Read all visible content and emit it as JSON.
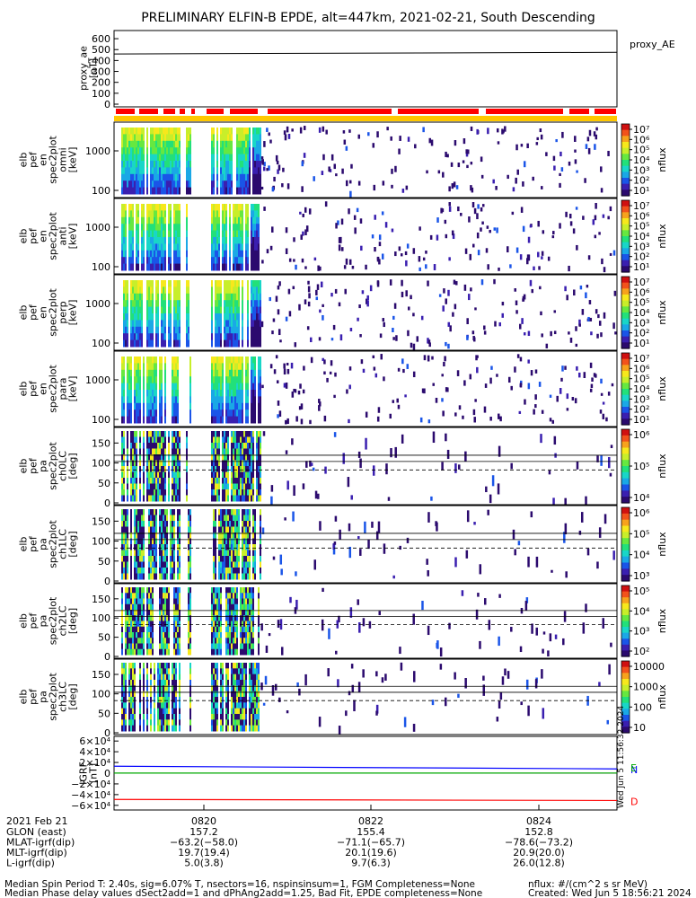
{
  "title": "PRELIMINARY ELFIN-B EPDE, alt=447km, 2021-02-21, South Descending",
  "colors": {
    "spectrogram": [
      "#2b0a6e",
      "#3a1fb0",
      "#1a55e8",
      "#1aa8e6",
      "#19d6c8",
      "#22e07a",
      "#66e840",
      "#c8ee2a",
      "#f7e81c",
      "#f7a21c",
      "#f2521b",
      "#d01010"
    ],
    "footprint_bar_red": "#ff0000",
    "footprint_bar_yellow": "#ffc800",
    "bx": "#0000ff",
    "by": "#00aa00",
    "bz": "#ff0000"
  },
  "chart_data": [
    {
      "type": "line",
      "panel": "proxy_ae",
      "legend": "proxy_AE",
      "ylabel_lines": [
        "proxy_ae",
        "[nT]"
      ],
      "yticks": [
        "600",
        "500",
        "400",
        "300",
        "200",
        "100",
        "0"
      ],
      "ylim": [
        0,
        650
      ],
      "x": [
        0,
        1
      ],
      "values": [
        460,
        475
      ]
    },
    {
      "type": "heatmap",
      "panel": "pef_en_spec2plot_omni",
      "ylabel_lines": [
        "elb",
        "pef",
        "en",
        "spec2plot",
        "omni",
        "[keV]"
      ],
      "yticks": [
        "1000",
        "100"
      ],
      "y_scale": "log",
      "colorbar": {
        "label": "nflux",
        "ticks": [
          "10⁷",
          "10⁶",
          "10⁵",
          "10⁴",
          "10³",
          "10²",
          "10¹"
        ]
      }
    },
    {
      "type": "heatmap",
      "panel": "pef_en_spec2plot_anti",
      "ylabel_lines": [
        "elb",
        "pef",
        "en",
        "spec2plot",
        "anti",
        "[keV]"
      ],
      "yticks": [
        "1000",
        "100"
      ],
      "y_scale": "log",
      "colorbar": {
        "label": "nflux",
        "ticks": [
          "10⁷",
          "10⁶",
          "10⁵",
          "10⁴",
          "10³",
          "10²",
          "10¹"
        ]
      }
    },
    {
      "type": "heatmap",
      "panel": "pef_en_spec2plot_perp",
      "ylabel_lines": [
        "elb",
        "pef",
        "en",
        "spec2plot",
        "perp",
        "[keV]"
      ],
      "yticks": [
        "1000",
        "100"
      ],
      "y_scale": "log",
      "colorbar": {
        "label": "nflux",
        "ticks": [
          "10⁷",
          "10⁶",
          "10⁵",
          "10⁴",
          "10³",
          "10²",
          "10¹"
        ]
      }
    },
    {
      "type": "heatmap",
      "panel": "pef_en_spec2plot_para",
      "ylabel_lines": [
        "elb",
        "pef",
        "en",
        "spec2plot",
        "para",
        "[keV]"
      ],
      "yticks": [
        "1000",
        "100"
      ],
      "y_scale": "log",
      "colorbar": {
        "label": "nflux",
        "ticks": [
          "10⁷",
          "10⁶",
          "10⁵",
          "10⁴",
          "10³",
          "10²",
          "10¹"
        ]
      }
    },
    {
      "type": "heatmap",
      "panel": "pef_pa_spec2plot_ch0LC",
      "ylabel_lines": [
        "elb",
        "pef",
        "pa",
        "spec2plot",
        "ch0LC",
        "[deg]"
      ],
      "yticks": [
        "150",
        "100",
        "50",
        "0"
      ],
      "ylim": [
        0,
        180
      ],
      "colorbar": {
        "label": "nflux",
        "ticks": [
          "10⁶",
          "10⁵",
          "10⁴"
        ]
      }
    },
    {
      "type": "heatmap",
      "panel": "pef_pa_spec2plot_ch1LC",
      "ylabel_lines": [
        "elb",
        "pef",
        "pa",
        "spec2plot",
        "ch1LC",
        "[deg]"
      ],
      "yticks": [
        "150",
        "100",
        "50",
        "0"
      ],
      "ylim": [
        0,
        180
      ],
      "colorbar": {
        "label": "nflux",
        "ticks": [
          "10⁶",
          "10⁵",
          "10⁴",
          "10³"
        ]
      }
    },
    {
      "type": "heatmap",
      "panel": "pef_pa_spec2plot_ch2LC",
      "ylabel_lines": [
        "elb",
        "pef",
        "pa",
        "spec2plot",
        "ch2LC",
        "[deg]"
      ],
      "yticks": [
        "150",
        "100",
        "50",
        "0"
      ],
      "ylim": [
        0,
        180
      ],
      "colorbar": {
        "label": "nflux",
        "ticks": [
          "10⁵",
          "10⁴",
          "10³",
          "10²"
        ]
      }
    },
    {
      "type": "heatmap",
      "panel": "pef_pa_spec2plot_ch3LC",
      "ylabel_lines": [
        "elb",
        "pef",
        "pa",
        "spec2plot",
        "ch3LC",
        "[deg]"
      ],
      "yticks": [
        "150",
        "100",
        "50",
        "0"
      ],
      "ylim": [
        0,
        180
      ],
      "colorbar": {
        "label": "nflux",
        "ticks": [
          "10000",
          "1000",
          "100",
          "10"
        ]
      }
    },
    {
      "type": "line",
      "panel": "IGRF",
      "ylabel_lines": [
        "IGRF",
        "[nT]"
      ],
      "yticks": [
        "6×10⁴",
        "4×10⁴",
        "2×10⁴",
        "0",
        "−2×10⁴",
        "−4×10⁴",
        "−6×10⁴"
      ],
      "ylim": [
        -62000,
        62000
      ],
      "series": [
        {
          "name": "N",
          "values": [
            13000,
            8000
          ]
        },
        {
          "name": "E",
          "values": [
            200,
            300
          ]
        },
        {
          "name": "D",
          "values": [
            -49000,
            -51000
          ]
        }
      ]
    }
  ],
  "created_vertical": "Wed Jun 5 11:56:32 2024",
  "xaxis": {
    "date": "2021 Feb 21",
    "rows": [
      {
        "label": "GLON (east)",
        "values": [
          "",
          "157.2",
          "155.4",
          "152.8"
        ]
      },
      {
        "label": "MLAT-igrf(dip)",
        "values": [
          "",
          "−63.2(−58.0)",
          "−71.1(−65.7)",
          "−78.6(−73.2)"
        ]
      },
      {
        "label": "MLT-igrf(dip)",
        "values": [
          "",
          "19.7(19.4)",
          "20.1(19.6)",
          "20.9(20.0)"
        ]
      },
      {
        "label": "L-igrf(dip)",
        "values": [
          "",
          "5.0(3.8)",
          "9.7(6.3)",
          "26.0(12.8)"
        ]
      }
    ],
    "time_ticks": [
      "0820",
      "0822",
      "0824"
    ]
  },
  "footer": {
    "line1": "Median Spin Period T: 2.40s, sig=6.07% T, nsectors=16, nspinsinsum=1, FGM Completeness=None",
    "line2": "Median Phase delay values dSect2add=1 and dPhAng2add=1.25, Bad Fit, EPDE completeness=None",
    "units": "nflux: #/(cm^2 s sr MeV)",
    "created": "Created: Wed Jun  5 18:56:21 2024"
  }
}
